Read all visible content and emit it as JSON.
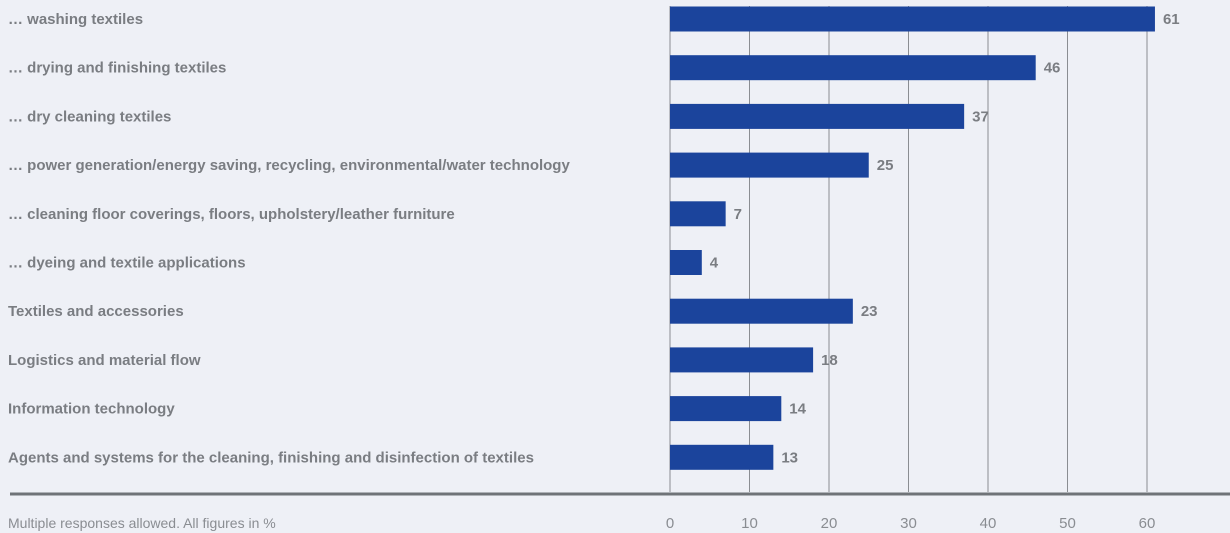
{
  "chart_data": {
    "type": "bar",
    "orientation": "horizontal",
    "categories": [
      "… washing textiles",
      "… drying and finishing textiles",
      "… dry cleaning textiles",
      "… power generation/energy saving, recycling, environmental/water technology",
      "… cleaning floor coverings, floors, upholstery/leather furniture",
      "… dyeing and textile applications",
      "Textiles and accessories",
      "Logistics and material flow",
      "Information technology",
      "Agents and systems for the cleaning, finishing and disinfection of textiles"
    ],
    "values": [
      61,
      46,
      37,
      25,
      7,
      4,
      23,
      18,
      14,
      13
    ],
    "xlim": [
      0,
      70
    ],
    "xticks": [
      0,
      10,
      20,
      30,
      40,
      50,
      60
    ],
    "grid": true,
    "bar_color": "#1b449c",
    "footnote": "Multiple responses allowed. All figures in %"
  }
}
